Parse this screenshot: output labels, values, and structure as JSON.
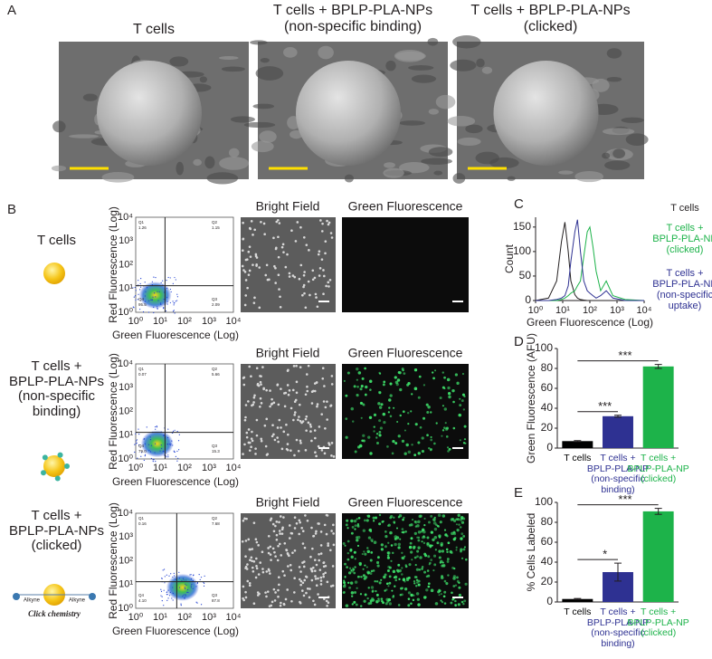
{
  "panel_a": {
    "letter": "A",
    "captions": [
      "T cells",
      "T cells + BPLP-PLA-NPs\n(non-specific binding)",
      "T cells + BPLP-PLA-NPs\n(clicked)"
    ]
  },
  "panel_b": {
    "letter": "B",
    "image_titles": [
      "Bright Field",
      "Green Fluorescence"
    ],
    "flow_x_label": "Green Fluorescence (Log)",
    "flow_y_label": "Red Fluorescence (Log)",
    "flow_ticks": [
      "10⁰",
      "10¹",
      "10²",
      "10³",
      "10⁴"
    ],
    "rows": [
      {
        "sample": "T cells",
        "quadrants": [
          [
            "Q1",
            "1.26"
          ],
          [
            "Q2",
            "1.15"
          ],
          [
            "Q4",
            "95.5"
          ],
          [
            "Q3",
            "2.09"
          ]
        ]
      },
      {
        "sample": "T cells +\nBPLP-PLA-NPs\n(non-specific\nbinding)",
        "quadrants": [
          [
            "Q1",
            "0.07"
          ],
          [
            "Q2",
            "5.66"
          ],
          [
            "Q4",
            "79.0"
          ],
          [
            "Q3",
            "15.3"
          ]
        ]
      },
      {
        "sample": "T cells +\nBPLP-PLA-NPs\n(clicked)",
        "quadrants": [
          [
            "Q1",
            "0.16"
          ],
          [
            "Q2",
            "7.68"
          ],
          [
            "Q4",
            "4.10"
          ],
          [
            "Q3",
            "87.8"
          ]
        ],
        "icon_labels": [
          "Alkyne",
          "Alkyne",
          "Click chemistry"
        ]
      }
    ]
  },
  "chart_data": [
    {
      "type": "line",
      "panel": "C",
      "x_label": "Green Fluorescence (Log)",
      "y_label": "Count",
      "log_x": true,
      "legend": "right",
      "x": [
        1,
        3,
        6,
        9,
        12,
        16,
        20,
        28,
        35,
        45,
        60,
        80,
        100,
        130,
        170,
        250,
        400,
        700,
        2000,
        10000
      ],
      "series": [
        {
          "name": "T cells",
          "color": "#231f20",
          "values": [
            0,
            5,
            40,
            120,
            160,
            100,
            40,
            12,
            5,
            2,
            1,
            0,
            0,
            0,
            0,
            0,
            0,
            0,
            0,
            0
          ]
        },
        {
          "name": "T cells +\nBPLP-PLA-NP\n(clicked)",
          "color": "#1db34a",
          "values": [
            0,
            0,
            0,
            2,
            5,
            10,
            15,
            20,
            30,
            40,
            90,
            140,
            150,
            110,
            60,
            20,
            40,
            10,
            2,
            0
          ]
        },
        {
          "name": "T cells +\nBPLP-PLA-NP\n(non-specific\nuptake)",
          "color": "#2e3192",
          "values": [
            0,
            0,
            2,
            5,
            10,
            30,
            80,
            140,
            165,
            100,
            40,
            20,
            15,
            10,
            5,
            10,
            20,
            5,
            0,
            0
          ]
        }
      ],
      "xlim": [
        1,
        10000
      ],
      "xticks": [
        {
          "value": 1,
          "label": "10⁰"
        },
        {
          "value": 10,
          "label": "10¹"
        },
        {
          "value": 100,
          "label": "10²"
        },
        {
          "value": 1000,
          "label": "10³"
        },
        {
          "value": 10000,
          "label": "10⁴"
        }
      ],
      "ylim": [
        0,
        170
      ],
      "yticks": [
        0,
        50,
        100,
        150
      ]
    },
    {
      "type": "bar",
      "panel": "D",
      "y_label": "Green Fluorescence (AFU)",
      "categories": [
        "T cells",
        "T cells +\nBPLP-PLA-NP\n(non-specific\nbinding)",
        "T cells +\nBPLP-PLA-NP\n(clicked)"
      ],
      "values": [
        7,
        32,
        82
      ],
      "errors": [
        0.5,
        1,
        2
      ],
      "colors": [
        "#000000",
        "#2e3192",
        "#1db34a"
      ],
      "annotations": [
        "***",
        "***"
      ],
      "ylim": [
        0,
        100
      ],
      "yticks": [
        0,
        20,
        40,
        60,
        80,
        100
      ]
    },
    {
      "type": "bar",
      "panel": "E",
      "y_label": "% Cells Labeled",
      "categories": [
        "T cells",
        "T cells +\nBPLP-PLA-NP\n(non-specific\nbinding)",
        "T cells +\nBPLP-PLA-NP\n(clicked)"
      ],
      "values": [
        3,
        30,
        91
      ],
      "errors": [
        0.5,
        9,
        3
      ],
      "colors": [
        "#000000",
        "#2e3192",
        "#1db34a"
      ],
      "annotations": [
        "*",
        "***"
      ],
      "ylim": [
        0,
        100
      ],
      "yticks": [
        0,
        20,
        40,
        60,
        80,
        100
      ]
    }
  ]
}
